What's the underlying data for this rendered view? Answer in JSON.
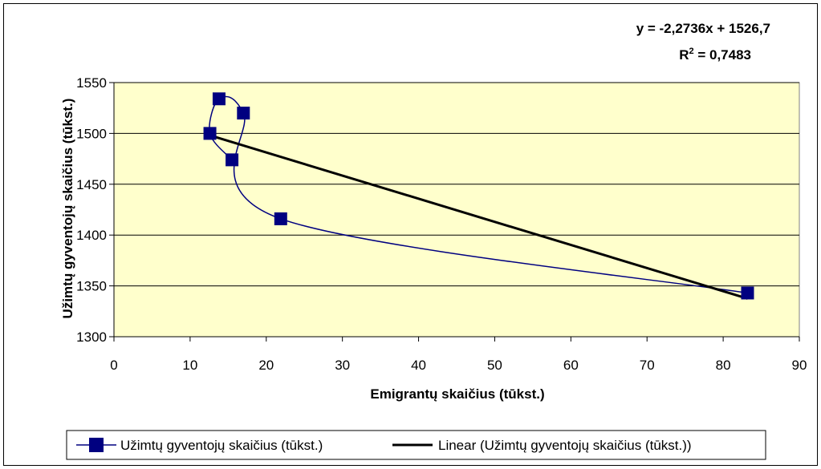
{
  "chart_data": {
    "type": "scatter",
    "xlabel": "Emigrantų skaičius (tūkst.)",
    "ylabel": "Užimtų gyventojų skaičius (tūkst.)",
    "xlim": [
      0,
      90
    ],
    "ylim": [
      1300,
      1550
    ],
    "xticks": [
      "0",
      "10",
      "20",
      "30",
      "40",
      "50",
      "60",
      "70",
      "80",
      "90"
    ],
    "yticks": [
      "1300",
      "1350",
      "1400",
      "1450",
      "1500",
      "1550"
    ],
    "grid": "horizontal",
    "plot_background": "#ffffcc",
    "series": [
      {
        "name": "Užimtų gyventojų skaičius (tūkst.)",
        "color": "#000080",
        "marker": "square",
        "line": "smoothed",
        "points": [
          {
            "x": 83.2,
            "y": 1343
          },
          {
            "x": 21.9,
            "y": 1416
          },
          {
            "x": 17.0,
            "y": 1520
          },
          {
            "x": 13.8,
            "y": 1534
          },
          {
            "x": 12.6,
            "y": 1500
          },
          {
            "x": 15.5,
            "y": 1474
          }
        ]
      }
    ],
    "trendline": {
      "name": "Linear (Užimtų gyventojų skaičius (tūkst.))",
      "color": "#000000",
      "slope": -2.2736,
      "intercept": 1526.7,
      "x_range": [
        12.6,
        83.2
      ]
    },
    "equation_text": "y = -2,2736x + 1526,7",
    "r2_label": "R",
    "r2_exponent": "2",
    "r2_value_text": " = 0,7483",
    "legend_position": "bottom"
  }
}
